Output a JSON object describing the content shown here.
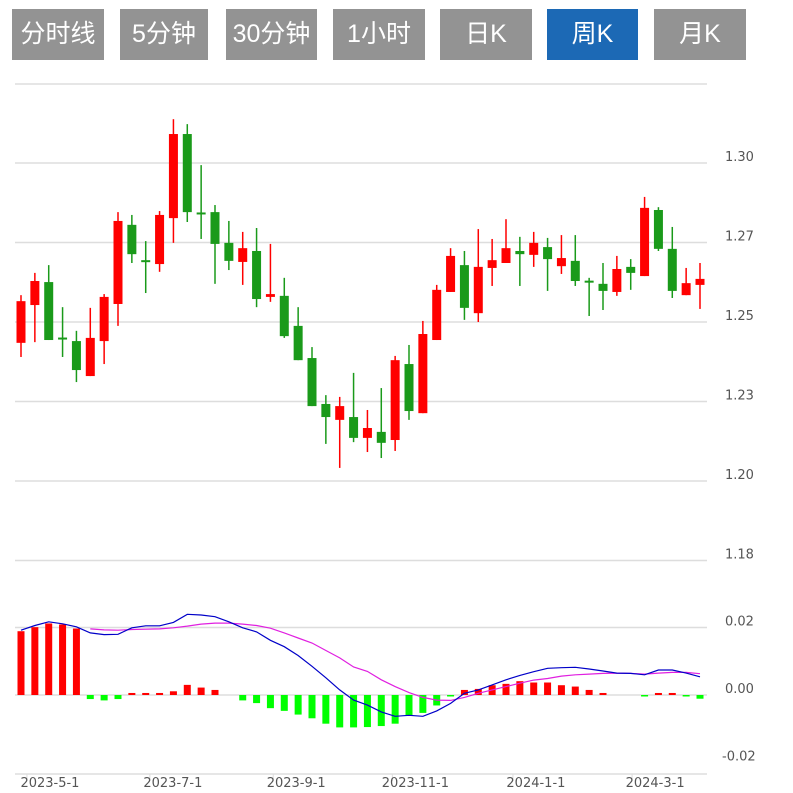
{
  "tabs": [
    {
      "label": "分时线",
      "active": false
    },
    {
      "label": "5分钟",
      "active": false
    },
    {
      "label": "30分钟",
      "active": false
    },
    {
      "label": "1小时",
      "active": false
    },
    {
      "label": "日K",
      "active": false
    },
    {
      "label": "周K",
      "active": true
    },
    {
      "label": "月K",
      "active": false
    }
  ],
  "colors": {
    "up": "#ff0000",
    "down": "#1a9a1a",
    "hist_up": "#ff0000",
    "hist_down": "#00ff00",
    "dif": "#0000c8",
    "dea": "#e020e0",
    "active_tab": "#1c69b5",
    "tab": "#939393"
  },
  "chart_data": [
    {
      "type": "candlestick",
      "title": "周K",
      "y_ticks": [
        {
          "value": 1.295,
          "label": "1.30"
        },
        {
          "value": 1.2725,
          "label": "1.27"
        },
        {
          "value": 1.25,
          "label": "1.25"
        },
        {
          "value": 1.2275,
          "label": "1.23"
        },
        {
          "value": 1.205,
          "label": "1.20"
        },
        {
          "value": 1.1825,
          "label": "1.18"
        }
      ],
      "ylim": [
        1.1825,
        1.3175
      ],
      "grid": true,
      "x_ticks": [
        {
          "index": 0.43,
          "label": "2023-5-1"
        },
        {
          "index": 9.3,
          "label": "2023-7-1"
        },
        {
          "index": 18.2,
          "label": "2023-9-1"
        },
        {
          "index": 26.8,
          "label": "2023-11-1"
        },
        {
          "index": 35.5,
          "label": "2024-1-1"
        },
        {
          "index": 44.1,
          "label": "2024-3-1"
        }
      ],
      "ohlc": [
        [
          1.2441,
          1.2576,
          1.2401,
          1.2559
        ],
        [
          1.2548,
          1.2639,
          1.2443,
          1.2616
        ],
        [
          1.2613,
          1.2661,
          1.2449,
          1.2449
        ],
        [
          1.2456,
          1.2542,
          1.2401,
          1.2453
        ],
        [
          1.2446,
          1.2475,
          1.233,
          1.2364
        ],
        [
          1.2347,
          1.254,
          1.2347,
          1.2455
        ],
        [
          1.2446,
          1.2579,
          1.2381,
          1.2571
        ],
        [
          1.2551,
          1.2811,
          1.2489,
          1.2786
        ],
        [
          1.2775,
          1.2803,
          1.2667,
          1.2692
        ],
        [
          1.2675,
          1.2729,
          1.2582,
          1.2672
        ],
        [
          1.2664,
          1.2814,
          1.2642,
          1.2803
        ],
        [
          1.2794,
          1.3074,
          1.2724,
          1.3032
        ],
        [
          1.3032,
          1.306,
          1.2783,
          1.2811
        ],
        [
          1.281,
          1.2944,
          1.2735,
          1.2807
        ],
        [
          1.2811,
          1.2831,
          1.2608,
          1.2721
        ],
        [
          1.2724,
          1.2786,
          1.2647,
          1.2673
        ],
        [
          1.267,
          1.2755,
          1.2605,
          1.2709
        ],
        [
          1.2701,
          1.2766,
          1.2542,
          1.2565
        ],
        [
          1.2571,
          1.2721,
          1.2557,
          1.2579
        ],
        [
          1.2574,
          1.2625,
          1.2455,
          1.246
        ],
        [
          1.2489,
          1.2542,
          1.2392,
          1.2392
        ],
        [
          1.2398,
          1.2429,
          1.2262,
          1.2262
        ],
        [
          1.2268,
          1.2293,
          1.2155,
          1.2231
        ],
        [
          1.2223,
          1.2288,
          1.2087,
          1.2262
        ],
        [
          1.2231,
          1.2356,
          1.216,
          1.2172
        ],
        [
          1.2172,
          1.2251,
          1.2132,
          1.22
        ],
        [
          1.2189,
          1.2313,
          1.2115,
          1.2158
        ],
        [
          1.2166,
          1.2404,
          1.2135,
          1.2392
        ],
        [
          1.2381,
          1.2435,
          1.2223,
          1.2248
        ],
        [
          1.2242,
          1.2503,
          1.2242,
          1.2466
        ],
        [
          1.2449,
          1.2605,
          1.2449,
          1.2591
        ],
        [
          1.2585,
          1.2709,
          1.2585,
          1.2687
        ],
        [
          1.2661,
          1.2701,
          1.2506,
          1.254
        ],
        [
          1.2525,
          1.2763,
          1.25,
          1.2656
        ],
        [
          1.2653,
          1.2735,
          1.2602,
          1.2675
        ],
        [
          1.2667,
          1.2791,
          1.2667,
          1.2709
        ],
        [
          1.2701,
          1.2741,
          1.2602,
          1.2692
        ],
        [
          1.269,
          1.2755,
          1.2656,
          1.2724
        ],
        [
          1.2712,
          1.2738,
          1.2588,
          1.2678
        ],
        [
          1.2658,
          1.2746,
          1.2636,
          1.2681
        ],
        [
          1.2673,
          1.2746,
          1.2602,
          1.2616
        ],
        [
          1.2617,
          1.2625,
          1.2517,
          1.2615
        ],
        [
          1.2608,
          1.2667,
          1.2534,
          1.2588
        ],
        [
          1.2585,
          1.2687,
          1.2574,
          1.265
        ],
        [
          1.2656,
          1.2678,
          1.2591,
          1.2639
        ],
        [
          1.263,
          1.2854,
          1.263,
          1.2823
        ],
        [
          1.2817,
          1.2825,
          1.2701,
          1.2707
        ],
        [
          1.2707,
          1.2769,
          1.2568,
          1.2588
        ],
        [
          1.2576,
          1.2653,
          1.2576,
          1.261
        ],
        [
          1.2605,
          1.2667,
          1.2537,
          1.2622
        ]
      ]
    },
    {
      "type": "macd",
      "y_ticks": [
        {
          "value": 0.02,
          "label": "0.02"
        },
        {
          "value": 0.0,
          "label": "0.00"
        },
        {
          "value": -0.02,
          "label": "-0.02"
        }
      ],
      "ylim": [
        -0.0215,
        0.033
      ],
      "histogram": [
        0.0189,
        0.0201,
        0.0212,
        0.0209,
        0.0197,
        -0.0012,
        -0.0016,
        -0.0012,
        0.0006,
        0.0006,
        0.0006,
        0.0011,
        0.003,
        0.0022,
        0.0015,
        0.0,
        -0.0016,
        -0.0024,
        -0.0039,
        -0.0047,
        -0.0058,
        -0.0069,
        -0.0085,
        -0.0096,
        -0.0096,
        -0.0095,
        -0.0092,
        -0.0085,
        -0.0062,
        -0.0053,
        -0.0031,
        -0.0004,
        0.0015,
        0.0018,
        0.0029,
        0.0033,
        0.0041,
        0.0037,
        0.0037,
        0.0029,
        0.0025,
        0.0015,
        0.0006,
        0.0,
        0.0,
        -0.0004,
        0.0006,
        0.0006,
        -0.0004,
        -0.0011
      ],
      "dif": [
        0.0192,
        0.0206,
        0.0217,
        0.0211,
        0.0202,
        0.0184,
        0.0179,
        0.018,
        0.0199,
        0.0205,
        0.0205,
        0.0215,
        0.0239,
        0.0237,
        0.0232,
        0.0217,
        0.0199,
        0.0187,
        0.0162,
        0.0143,
        0.0117,
        0.0085,
        0.0051,
        0.0015,
        -0.0015,
        -0.003,
        -0.005,
        -0.0063,
        -0.006,
        -0.0063,
        -0.0047,
        -0.0025,
        0.0005,
        0.0015,
        0.003,
        0.0045,
        0.0058,
        0.0069,
        0.0079,
        0.0081,
        0.0082,
        0.0077,
        0.0071,
        0.0065,
        0.0064,
        0.006,
        0.0074,
        0.0074,
        0.0065,
        0.0054
      ],
      "dea": [
        null,
        null,
        null,
        null,
        null,
        0.0196,
        0.0193,
        0.0192,
        0.0194,
        0.0195,
        0.0196,
        0.0199,
        0.0204,
        0.021,
        0.0213,
        0.0213,
        0.021,
        0.0206,
        0.0198,
        0.0184,
        0.0169,
        0.0154,
        0.0132,
        0.011,
        0.0083,
        0.007,
        0.0045,
        0.0025,
        0.0007,
        -0.0007,
        -0.0015,
        -0.0016,
        -0.0007,
        0.0005,
        0.0015,
        0.0025,
        0.0035,
        0.0044,
        0.0049,
        0.0056,
        0.006,
        0.0062,
        0.0064,
        0.0065,
        0.0064,
        0.0062,
        0.0065,
        0.0067,
        0.0067,
        0.0063
      ]
    }
  ]
}
